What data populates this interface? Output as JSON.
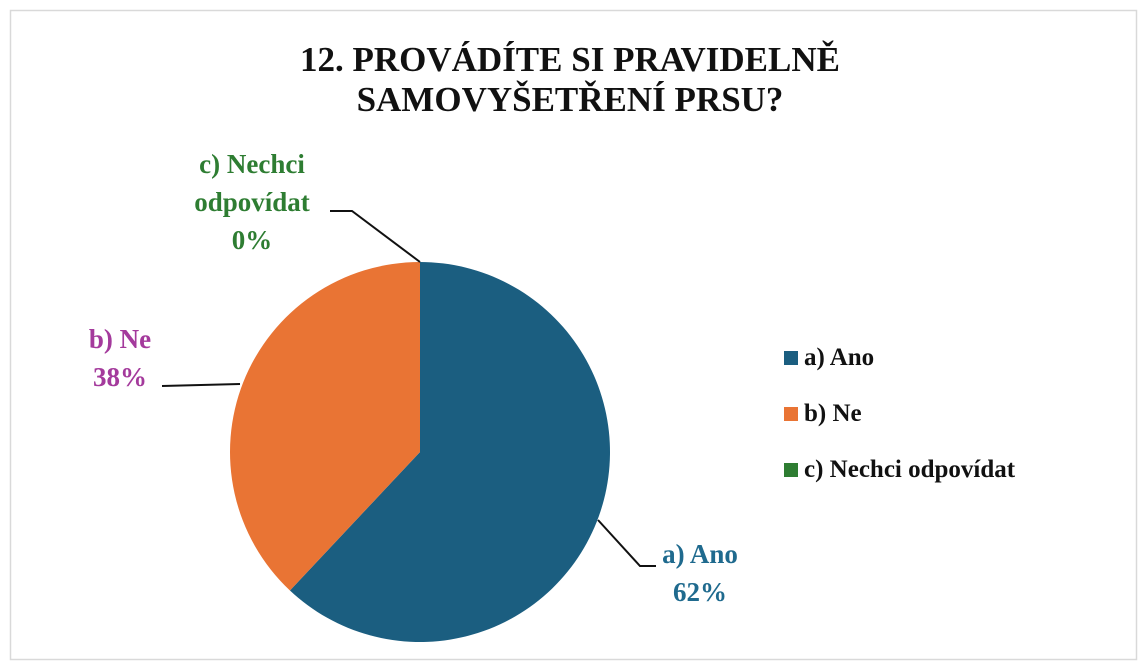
{
  "chart_data": {
    "type": "pie",
    "title": "12. PROVÁDÍTE SI PRAVIDELNĚ SAMOVYŠETŘENÍ PRSU?",
    "categories": [
      "a) Ano",
      "b) Ne",
      "c) Nechci odpovídat"
    ],
    "values": [
      62,
      38,
      0
    ],
    "value_labels": [
      "62%",
      "38%",
      "0%"
    ],
    "colors": [
      "#1b5e80",
      "#e97434",
      "#2e7d32"
    ],
    "label_colors": [
      "#1f6a8e",
      "#a43a9c",
      "#2e7d32"
    ],
    "legend": "right"
  }
}
